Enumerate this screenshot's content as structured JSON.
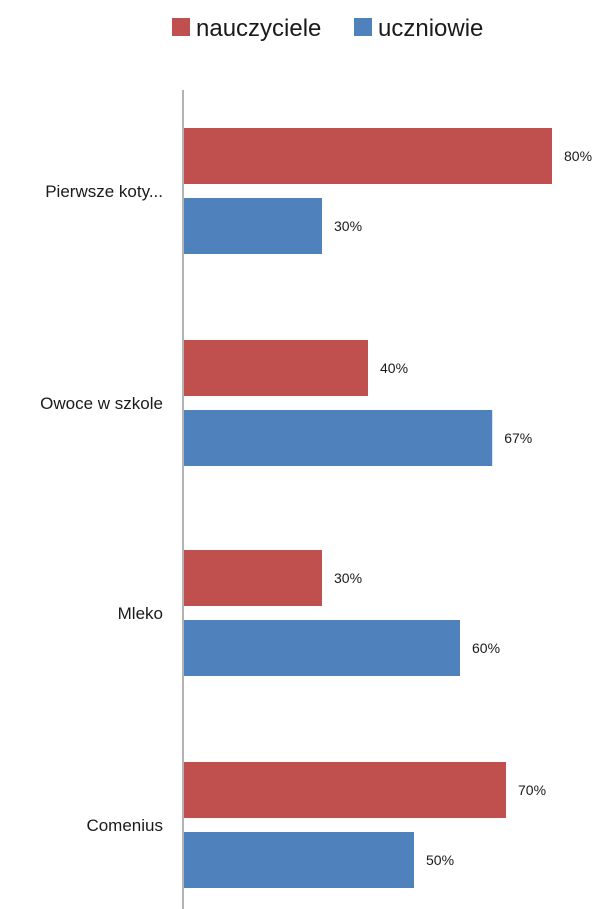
{
  "chart_data": {
    "type": "bar",
    "orientation": "horizontal",
    "categories": [
      "Pierwsze koty...",
      "Owoce w szkole",
      "Mleko",
      "Comenius"
    ],
    "series": [
      {
        "name": "nauczyciele",
        "color": "#c0504d",
        "values": [
          80,
          40,
          30,
          70
        ],
        "labels": [
          "80%",
          "40%",
          "30%",
          "70%"
        ]
      },
      {
        "name": "uczniowie",
        "color": "#4f81bd",
        "values": [
          30,
          67,
          60,
          50
        ],
        "labels": [
          "30%",
          "67%",
          "60%",
          "50%"
        ]
      }
    ],
    "xlim": [
      0,
      100
    ],
    "legend_position": "top",
    "grid": false
  }
}
